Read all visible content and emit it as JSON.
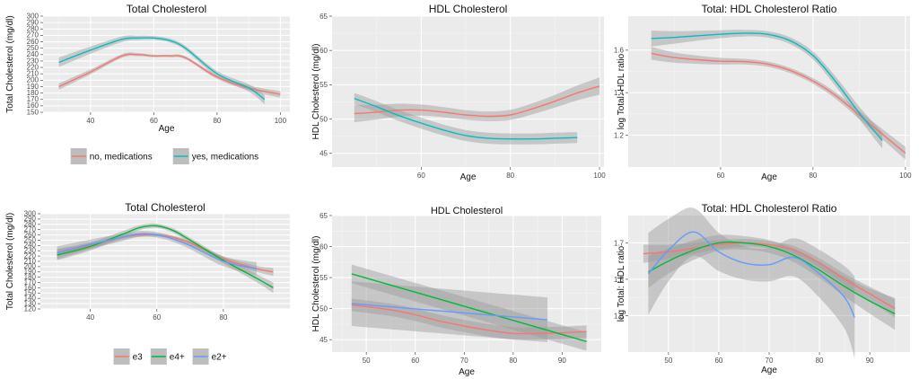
{
  "chart_data": [
    {
      "id": "p1",
      "type": "line",
      "title": "Total Cholesterol",
      "xlabel": "Age",
      "ylabel": "Total Cholesterol (mg/dl)",
      "xlim": [
        25,
        103
      ],
      "ylim": [
        150,
        300
      ],
      "xticks": [
        40,
        60,
        80,
        100
      ],
      "yticks": [
        150,
        160,
        170,
        180,
        190,
        200,
        210,
        220,
        230,
        240,
        250,
        260,
        270,
        280,
        290,
        300
      ],
      "legend": "bottom",
      "series": [
        {
          "name": "no, medications",
          "color": "#F8766D",
          "ribbon": 2,
          "x": [
            30,
            40,
            50,
            55,
            60,
            65,
            70,
            80,
            90,
            100
          ],
          "y": [
            190,
            213,
            238,
            240,
            238,
            238,
            235,
            205,
            188,
            178
          ]
        },
        {
          "name": "yes, medications",
          "color": "#00BFC4",
          "ribbon": 3,
          "x": [
            30,
            40,
            50,
            55,
            60,
            65,
            70,
            80,
            90,
            95
          ],
          "y": [
            228,
            247,
            264,
            266,
            266,
            262,
            250,
            210,
            188,
            170
          ]
        }
      ]
    },
    {
      "id": "p2",
      "type": "line",
      "title": "HDL Cholesterol",
      "xlabel": "Age",
      "ylabel": "HDL Cholesterol (mg/dl)",
      "xlim": [
        40,
        101
      ],
      "ylim": [
        43,
        65
      ],
      "xticks": [
        60,
        80,
        100
      ],
      "yticks": [
        45,
        50,
        55,
        60,
        65
      ],
      "series": [
        {
          "name": "no, medications",
          "color": "#F8766D",
          "ribbon": 0.7,
          "ribbonGrow": 1.8,
          "x": [
            45,
            50,
            55,
            60,
            65,
            70,
            75,
            80,
            85,
            90,
            95,
            100
          ],
          "y": [
            50.8,
            51.0,
            51.3,
            51.3,
            51.0,
            50.6,
            50.4,
            50.6,
            51.5,
            52.6,
            53.8,
            54.8
          ]
        },
        {
          "name": "yes, medications",
          "color": "#00BFC4",
          "ribbon": 0.8,
          "ribbonGrow": 1.0,
          "x": [
            45,
            50,
            55,
            60,
            65,
            70,
            75,
            80,
            85,
            90,
            95
          ],
          "y": [
            53.0,
            51.8,
            50.5,
            49.4,
            48.4,
            47.6,
            47.2,
            47.1,
            47.1,
            47.2,
            47.3
          ]
        }
      ]
    },
    {
      "id": "p3",
      "type": "line",
      "title": "Total: HDL Cholesterol Ratio",
      "xlabel": "Age",
      "ylabel": "log Total: HDL ratio",
      "xlim": [
        40,
        101
      ],
      "ylim": [
        1.05,
        1.76
      ],
      "xticks": [
        60,
        80,
        100
      ],
      "yticks": [
        1.2,
        1.4,
        1.6
      ],
      "series": [
        {
          "name": "no, medications",
          "color": "#F8766D",
          "ribbon": 0.012,
          "x": [
            45,
            50,
            55,
            60,
            65,
            70,
            75,
            80,
            85,
            90,
            95,
            100
          ],
          "y": [
            1.585,
            1.565,
            1.555,
            1.548,
            1.546,
            1.535,
            1.505,
            1.455,
            1.385,
            1.295,
            1.205,
            1.115
          ]
        },
        {
          "name": "yes, medications",
          "color": "#00BFC4",
          "ribbon": 0.015,
          "x": [
            45,
            50,
            55,
            60,
            65,
            70,
            75,
            80,
            85,
            90,
            95
          ],
          "y": [
            1.655,
            1.66,
            1.668,
            1.675,
            1.68,
            1.675,
            1.645,
            1.575,
            1.45,
            1.305,
            1.175
          ]
        }
      ]
    },
    {
      "id": "p4",
      "type": "line",
      "title": "Total Cholesterol",
      "xlabel": "",
      "ylabel": "Total Cholesterol (mg/dl)",
      "xlim": [
        25,
        100
      ],
      "ylim": [
        120,
        300
      ],
      "xticks": [
        40,
        60,
        80
      ],
      "yticks": [
        120,
        130,
        140,
        150,
        160,
        170,
        180,
        190,
        200,
        210,
        220,
        230,
        240,
        250,
        260,
        270,
        280,
        290,
        300
      ],
      "legend": "bottom",
      "series": [
        {
          "name": "e3",
          "color": "#F8766D",
          "ribbon": 3,
          "x": [
            30,
            40,
            50,
            55,
            60,
            65,
            70,
            80,
            90,
            95
          ],
          "y": [
            226,
            240,
            256,
            260,
            260,
            255,
            245,
            215,
            196,
            190
          ]
        },
        {
          "name": "e4+",
          "color": "#00BA38",
          "ribbon": 4,
          "x": [
            30,
            40,
            50,
            55,
            60,
            65,
            70,
            80,
            90,
            95
          ],
          "y": [
            222,
            238,
            262,
            274,
            277,
            268,
            250,
            212,
            178,
            160
          ]
        },
        {
          "name": "e2+",
          "color": "#619CFF",
          "ribbon": 5,
          "x": [
            30,
            40,
            50,
            55,
            60,
            65,
            70,
            80,
            90
          ],
          "y": [
            226,
            242,
            256,
            262,
            260,
            252,
            240,
            210,
            196
          ]
        }
      ]
    },
    {
      "id": "p5",
      "type": "line",
      "title": "HDL Cholesterol",
      "xlabel": "Age",
      "ylabel": "HDL Cholesterol (mg/dl)",
      "xlim": [
        43,
        98
      ],
      "ylim": [
        43,
        65
      ],
      "xticks": [
        50,
        60,
        70,
        80,
        90
      ],
      "yticks": [
        45,
        50,
        55,
        60,
        65
      ],
      "series": [
        {
          "name": "e3",
          "color": "#F8766D",
          "ribbon": 1.0,
          "ribbonGrow": 1.0,
          "x": [
            47,
            55,
            60,
            65,
            70,
            75,
            80,
            85,
            90,
            95
          ],
          "y": [
            50.6,
            49.8,
            49.0,
            48.0,
            47.2,
            46.5,
            46.0,
            46.0,
            46.1,
            46.3
          ]
        },
        {
          "name": "e4+",
          "color": "#00BA38",
          "ribbon": 1.5,
          "ribbonGrow": 1.0,
          "x": [
            47,
            95
          ],
          "y": [
            55.6,
            44.7
          ]
        },
        {
          "name": "e2+",
          "color": "#619CFF",
          "ribbon": 1.8,
          "ribbonGrow": 2.0,
          "x": [
            47,
            87
          ],
          "y": [
            50.8,
            48.2
          ]
        }
      ]
    },
    {
      "id": "p6",
      "type": "line",
      "title": "Total: HDL Cholesterol Ratio",
      "xlabel": "Age",
      "ylabel": "log Total: HDL ratio",
      "xlim": [
        42,
        98
      ],
      "ylim": [
        1.1,
        1.85
      ],
      "xticks": [
        50,
        60,
        70,
        80,
        90
      ],
      "yticks": [
        1.3,
        1.5,
        1.7
      ],
      "series": [
        {
          "name": "e3",
          "color": "#F8766D",
          "ribbon": 0.02,
          "x": [
            45,
            50,
            55,
            60,
            65,
            70,
            75,
            80,
            85,
            90,
            95
          ],
          "y": [
            1.64,
            1.65,
            1.67,
            1.69,
            1.7,
            1.69,
            1.66,
            1.59,
            1.5,
            1.42,
            1.34
          ]
        },
        {
          "name": "e4+",
          "color": "#00BA38",
          "ribbon": 0.035,
          "x": [
            46,
            50,
            55,
            60,
            65,
            70,
            75,
            80,
            85,
            90,
            95
          ],
          "y": [
            1.54,
            1.6,
            1.66,
            1.7,
            1.7,
            1.68,
            1.63,
            1.55,
            1.46,
            1.38,
            1.31
          ]
        },
        {
          "name": "e2+",
          "color": "#619CFF",
          "ribbon": 0.09,
          "x": [
            46,
            50,
            55,
            60,
            65,
            70,
            75,
            80,
            85,
            87
          ],
          "y": [
            1.53,
            1.66,
            1.76,
            1.65,
            1.59,
            1.58,
            1.62,
            1.53,
            1.4,
            1.29
          ]
        }
      ]
    }
  ]
}
